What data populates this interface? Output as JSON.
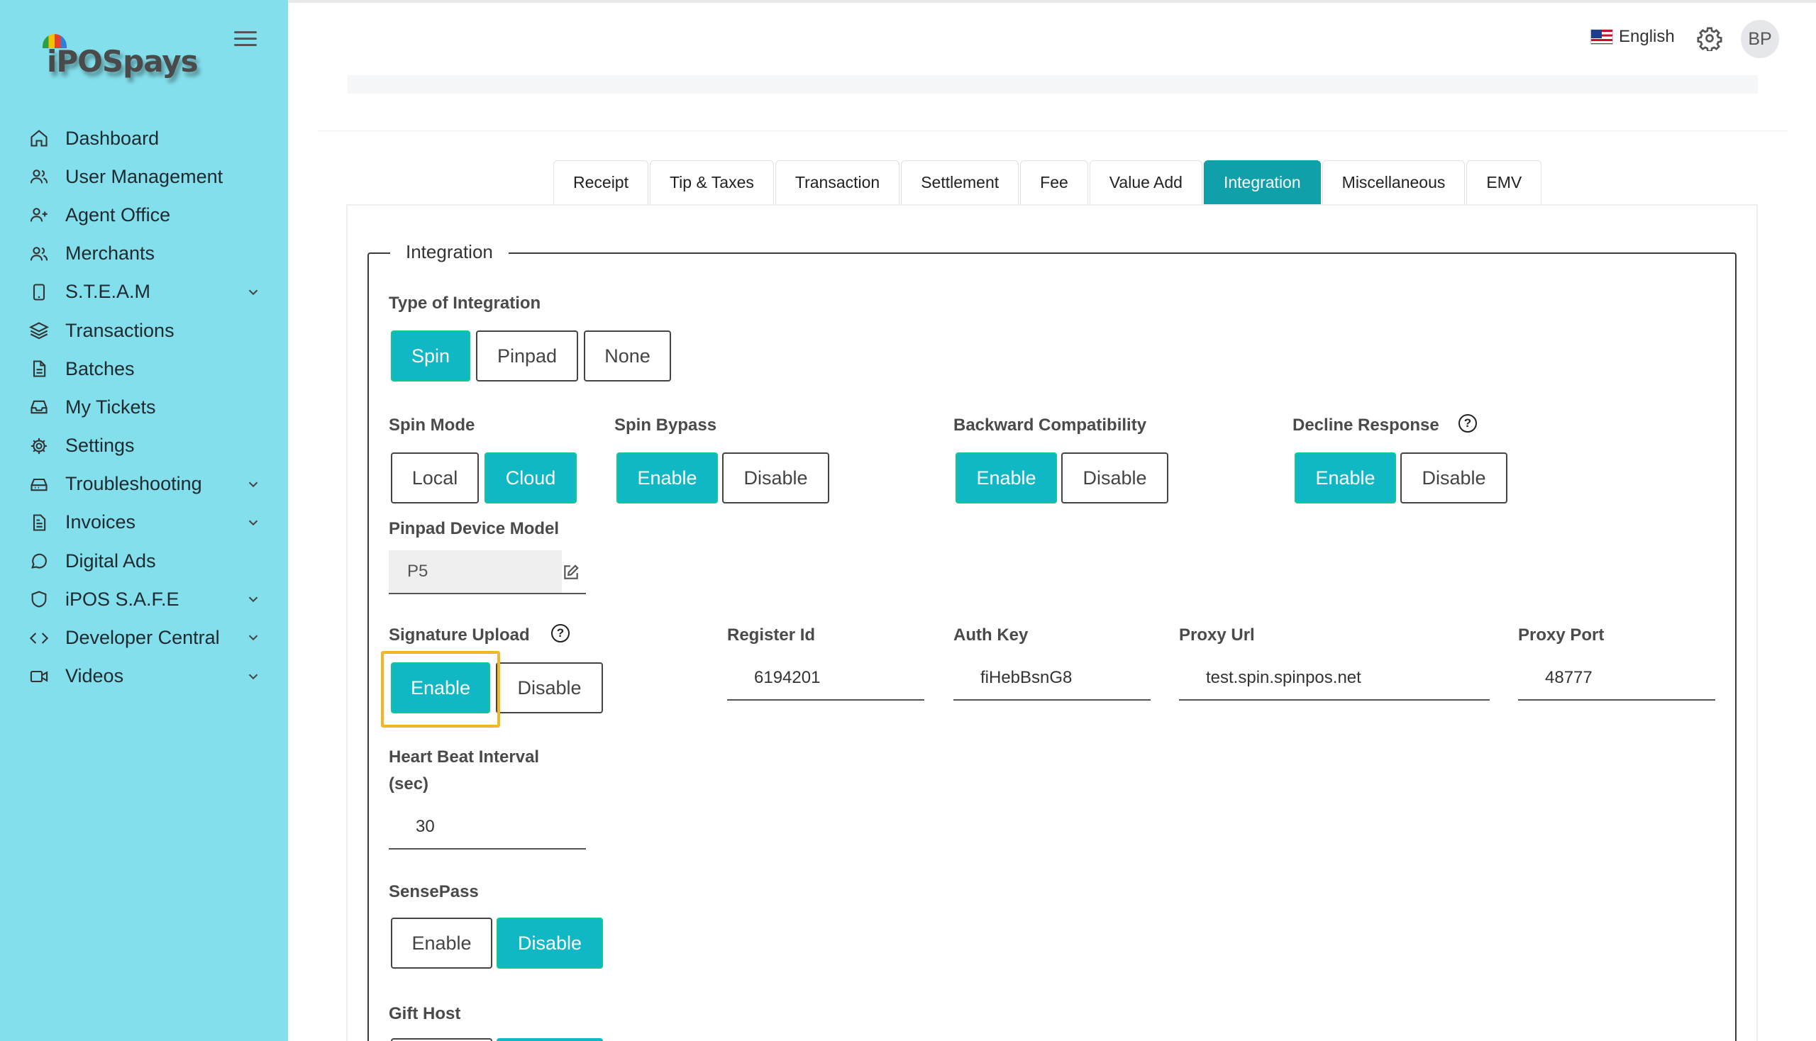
{
  "brand": {
    "logo_text": "iPOSpays"
  },
  "sidebar": {
    "items": [
      {
        "label": "Dashboard",
        "icon": "home-icon",
        "expandable": false
      },
      {
        "label": "User Management",
        "icon": "users-icon",
        "expandable": false
      },
      {
        "label": "Agent Office",
        "icon": "user-plus-icon",
        "expandable": false
      },
      {
        "label": "Merchants",
        "icon": "users-icon",
        "expandable": false
      },
      {
        "label": "S.T.E.A.M",
        "icon": "tablet-icon",
        "expandable": true
      },
      {
        "label": "Transactions",
        "icon": "layers-icon",
        "expandable": false
      },
      {
        "label": "Batches",
        "icon": "file-icon",
        "expandable": false
      },
      {
        "label": "My Tickets",
        "icon": "inbox-icon",
        "expandable": false
      },
      {
        "label": "Settings",
        "icon": "gear-icon",
        "expandable": false
      },
      {
        "label": "Troubleshooting",
        "icon": "hard-drive-icon",
        "expandable": true
      },
      {
        "label": "Invoices",
        "icon": "document-icon",
        "expandable": true
      },
      {
        "label": "Digital Ads",
        "icon": "message-circle-icon",
        "expandable": false
      },
      {
        "label": "iPOS S.A.F.E",
        "icon": "shield-icon",
        "expandable": true
      },
      {
        "label": "Developer Central",
        "icon": "code-icon",
        "expandable": true
      },
      {
        "label": "Videos",
        "icon": "video-icon",
        "expandable": true
      }
    ]
  },
  "topbar": {
    "language": "English",
    "avatar_initials": "BP"
  },
  "tabs": [
    {
      "label": "Receipt",
      "active": false
    },
    {
      "label": "Tip & Taxes",
      "active": false
    },
    {
      "label": "Transaction",
      "active": false
    },
    {
      "label": "Settlement",
      "active": false
    },
    {
      "label": "Fee",
      "active": false
    },
    {
      "label": "Value Add",
      "active": false
    },
    {
      "label": "Integration",
      "active": true
    },
    {
      "label": "Miscellaneous",
      "active": false
    },
    {
      "label": "EMV",
      "active": false
    }
  ],
  "integration": {
    "legend": "Integration",
    "type_of_integration": {
      "label": "Type of Integration",
      "options": [
        "Spin",
        "Pinpad",
        "None"
      ],
      "selected": "Spin"
    },
    "spin_mode": {
      "label": "Spin Mode",
      "options": [
        "Local",
        "Cloud"
      ],
      "selected": "Cloud"
    },
    "spin_bypass": {
      "label": "Spin Bypass",
      "options": [
        "Enable",
        "Disable"
      ],
      "selected": "Enable"
    },
    "backward_compatibility": {
      "label": "Backward Compatibility",
      "options": [
        "Enable",
        "Disable"
      ],
      "selected": "Enable"
    },
    "decline_response": {
      "label": "Decline Response",
      "help": "?",
      "options": [
        "Enable",
        "Disable"
      ],
      "selected": "Enable"
    },
    "pinpad_device_model": {
      "label": "Pinpad Device Model",
      "value": "P5"
    },
    "signature_upload": {
      "label": "Signature Upload",
      "help": "?",
      "options": [
        "Enable",
        "Disable"
      ],
      "selected": "Enable"
    },
    "register_id": {
      "label": "Register Id",
      "value": "6194201"
    },
    "auth_key": {
      "label": "Auth Key",
      "value": "fiHebBsnG8"
    },
    "proxy_url": {
      "label": "Proxy Url",
      "value": "test.spin.spinpos.net"
    },
    "proxy_port": {
      "label": "Proxy Port",
      "value": "48777"
    },
    "heart_beat_interval": {
      "label_line1": "Heart Beat Interval",
      "label_line2": "(sec)",
      "value": "30"
    },
    "sensepass": {
      "label": "SensePass",
      "options": [
        "Enable",
        "Disable"
      ],
      "selected": "Disable"
    },
    "gift_host": {
      "label": "Gift Host"
    }
  },
  "colors": {
    "sidebar_bg": "#83dfec",
    "accent": "#10b8c6",
    "tab_active": "#10a0aa",
    "highlight": "#f4b626"
  }
}
